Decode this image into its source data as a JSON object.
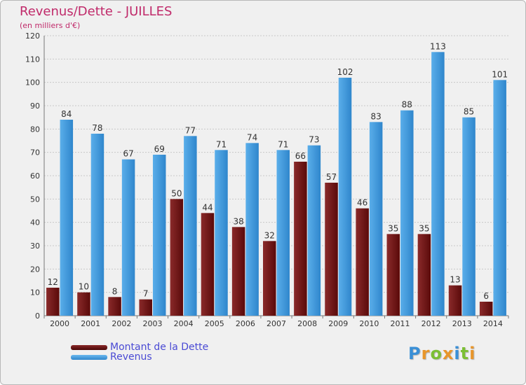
{
  "chart_data": {
    "type": "bar",
    "title": "Revenus/Dette - JUILLES",
    "subtitle": "(en milliers d'€)",
    "categories": [
      "2000",
      "2001",
      "2002",
      "2003",
      "2004",
      "2005",
      "2006",
      "2007",
      "2008",
      "2009",
      "2010",
      "2011",
      "2012",
      "2013",
      "2014"
    ],
    "series": [
      {
        "name": "Montant de la Dette",
        "color": "#6e1414",
        "values": [
          12,
          10,
          8,
          7,
          50,
          44,
          38,
          32,
          66,
          57,
          46,
          35,
          35,
          13,
          6
        ]
      },
      {
        "name": "Revenus",
        "color": "#3d9be0",
        "values": [
          84,
          78,
          67,
          69,
          77,
          71,
          74,
          71,
          73,
          102,
          83,
          88,
          113,
          85,
          101
        ]
      }
    ],
    "ylim": [
      0,
      120
    ],
    "yticks": [
      0,
      10,
      20,
      30,
      40,
      50,
      60,
      70,
      80,
      90,
      100,
      110,
      120
    ],
    "grid": true,
    "legend": "bottom-left"
  },
  "brand": {
    "letters": [
      "P",
      "r",
      "o",
      "x",
      "i",
      "t",
      "i"
    ],
    "colors": [
      "#3a8fd6",
      "#e8962b",
      "#7cbf35",
      "#e8962b",
      "#3a8fd6",
      "#7cbf35",
      "#e8962b"
    ]
  }
}
